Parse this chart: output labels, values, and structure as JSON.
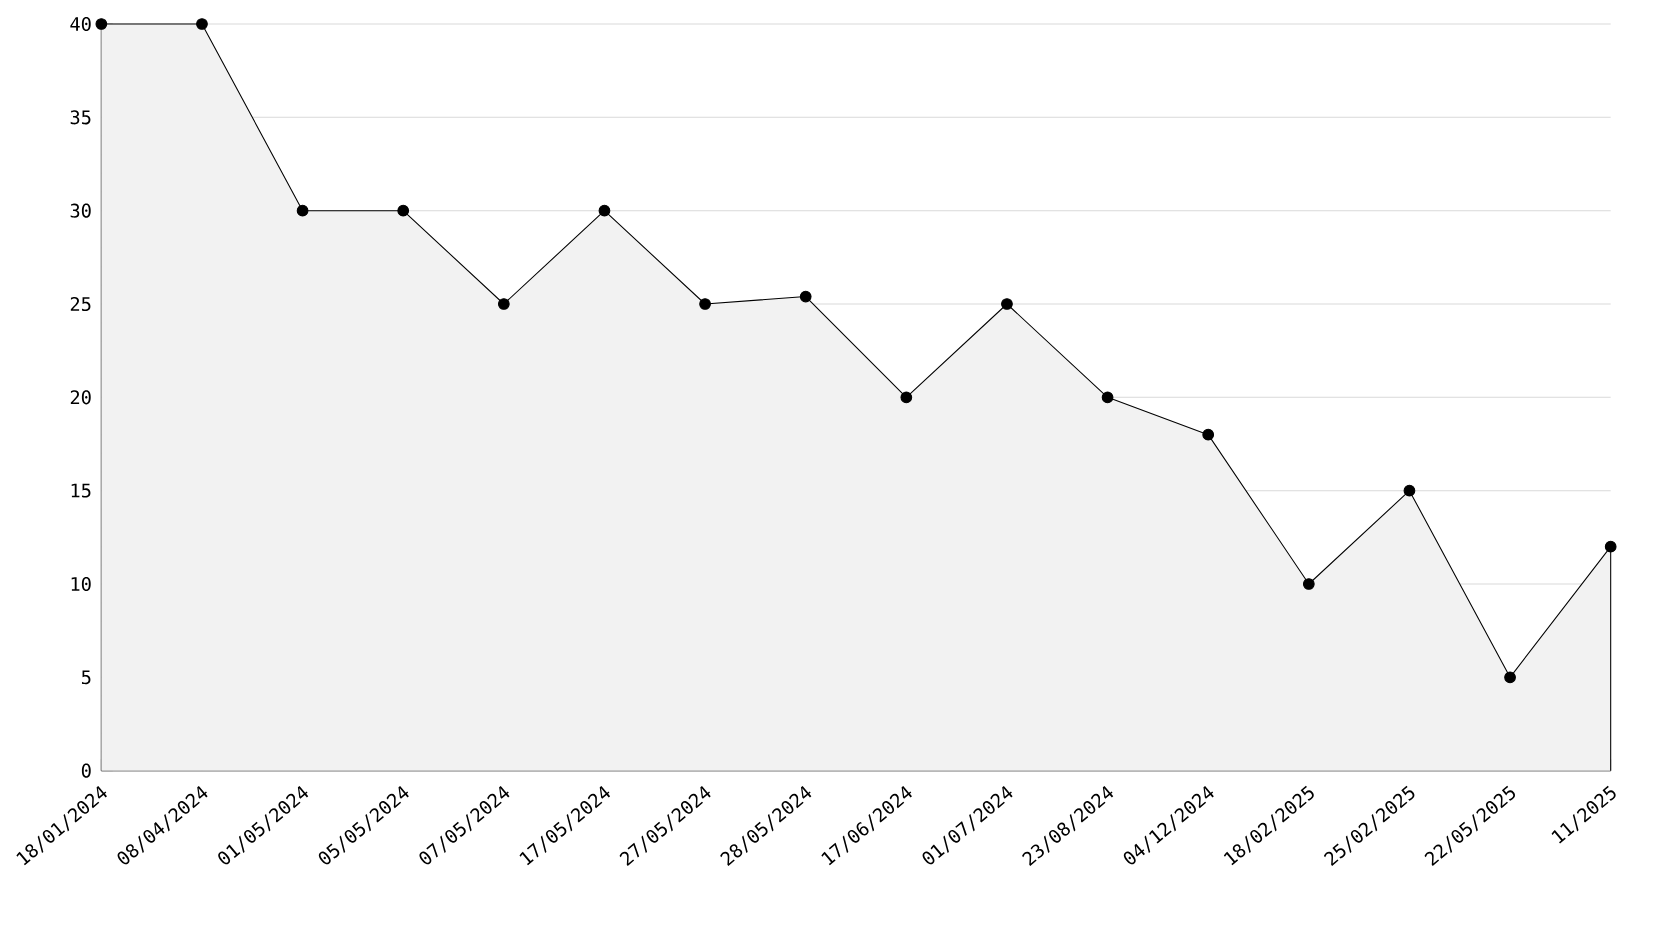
{
  "chart_data": {
    "type": "area",
    "categories": [
      "18/01/2024",
      "08/04/2024",
      "01/05/2024",
      "05/05/2024",
      "07/05/2024",
      "17/05/2024",
      "27/05/2024",
      "28/05/2024",
      "17/06/2024",
      "01/07/2024",
      "23/08/2024",
      "04/12/2024",
      "18/02/2025",
      "25/02/2025",
      "22/05/2025",
      "11/2025"
    ],
    "series": [
      {
        "color": "#000000",
        "values": [
          40,
          40,
          30,
          30,
          25,
          30,
          25,
          25.4,
          20,
          25,
          20,
          18,
          10,
          15,
          5,
          12
        ]
      }
    ],
    "ylim": [
      0,
      40
    ],
    "yticks": [
      0,
      5,
      10,
      15,
      20,
      25,
      30,
      35,
      40
    ],
    "grid": "y",
    "marker": "circle"
  }
}
